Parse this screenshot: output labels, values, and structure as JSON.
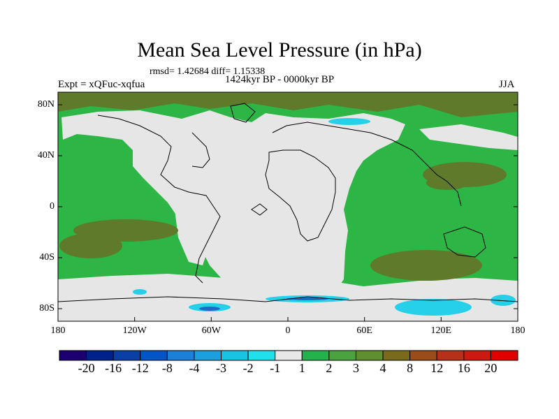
{
  "title": "Mean Sea Level Pressure (in hPa)",
  "stats_line": "rmsd= 1.42684 diff= 1.15338",
  "period": "1424kyr BP - 0000kyr BP",
  "experiment": "Expt = xQFuc-xqfua",
  "season": "JJA",
  "axes": {
    "lat_labels": [
      "80N",
      "40N",
      "0",
      "40S",
      "80S"
    ],
    "lon_labels": [
      "180",
      "120W",
      "60W",
      "0",
      "60E",
      "120E",
      "180"
    ]
  },
  "colorbar": {
    "labels": [
      "-20",
      "-16",
      "-12",
      "-8",
      "-4",
      "-3",
      "-2",
      "-1",
      "1",
      "2",
      "3",
      "4",
      "8",
      "12",
      "16",
      "20"
    ],
    "colors": [
      "#1a0070",
      "#00208c",
      "#0a3fa8",
      "#0055c8",
      "#1a80d8",
      "#1aa0e0",
      "#19c3e4",
      "#20e0ec",
      "#e8e8e8",
      "#23b34d",
      "#4aa33e",
      "#5f8f2e",
      "#7a6a1c",
      "#9a4c1a",
      "#b6301a",
      "#cc1a10",
      "#e00000"
    ]
  },
  "palette": {
    "ocean_green": "#2db545",
    "land_grey": "#e6e6e6",
    "olive": "#5f7a2a",
    "cyan": "#25d0e8",
    "blue": "#1a6ac8"
  }
}
